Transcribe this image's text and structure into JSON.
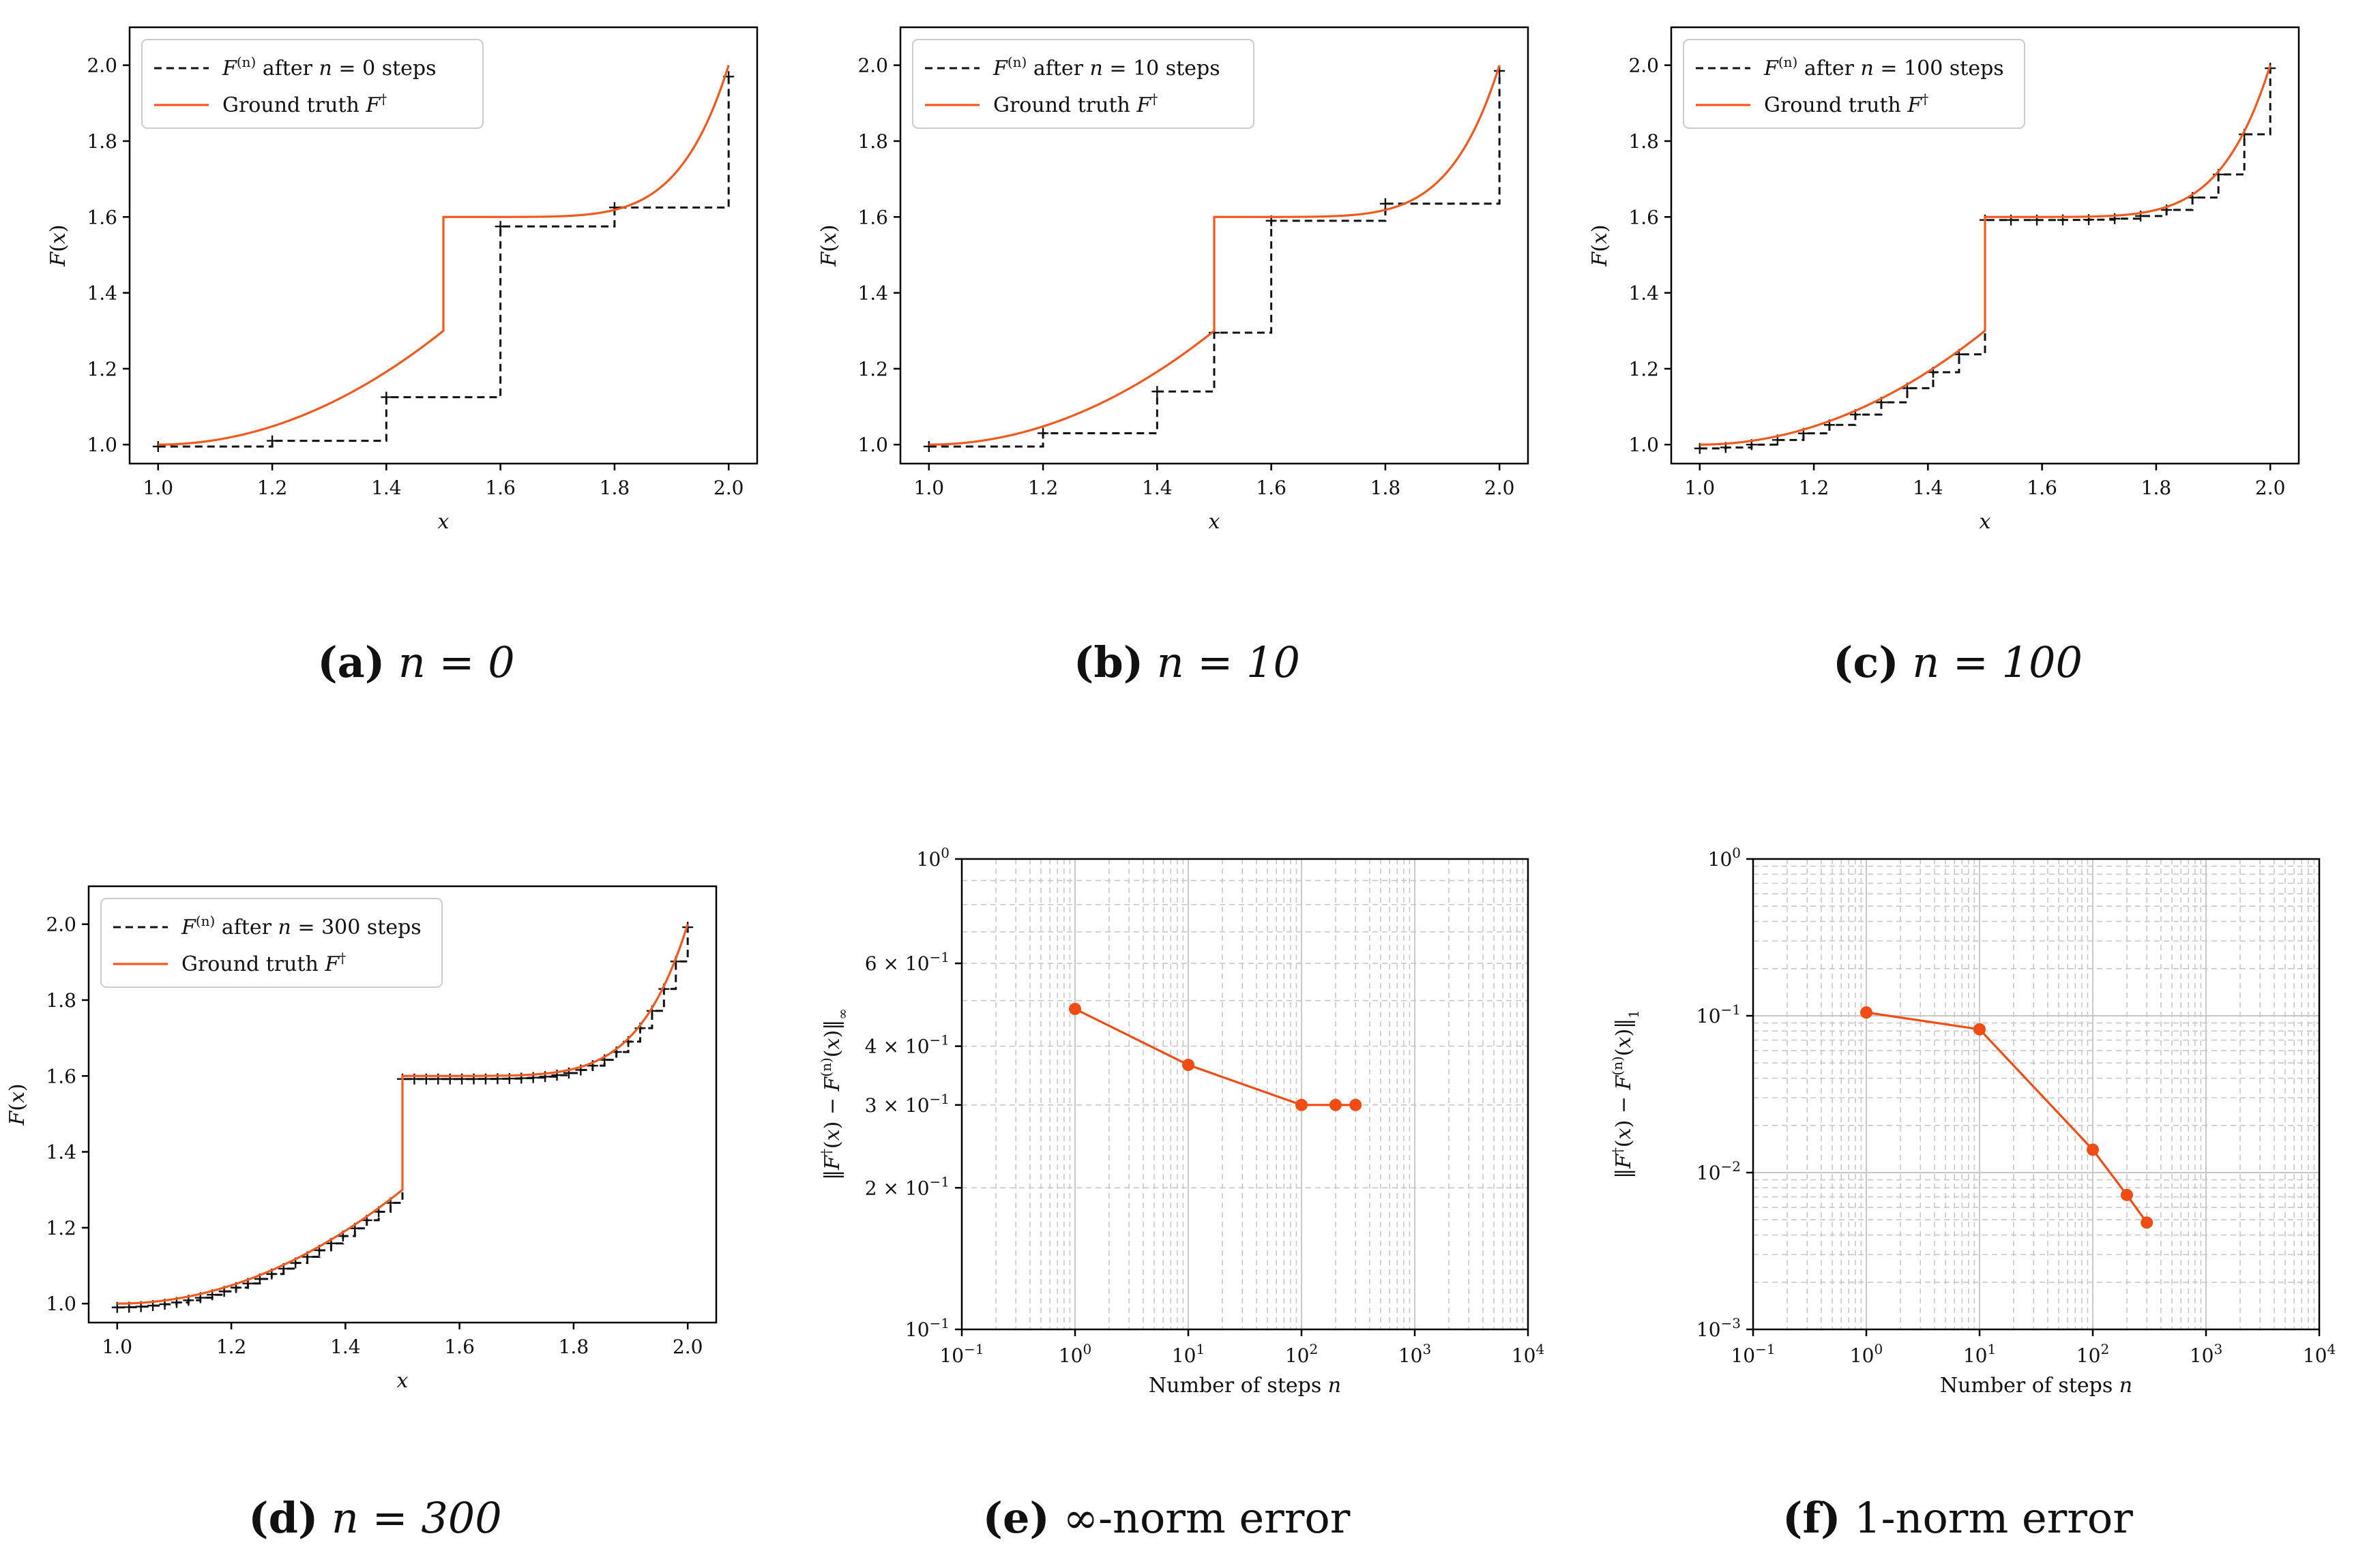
{
  "colors": {
    "truth": "#f05a1e",
    "approx": "#111111",
    "error": "#f04c14"
  },
  "captions": [
    {
      "letter": "(a)",
      "text": "n = 0"
    },
    {
      "letter": "(b)",
      "text": "n = 10"
    },
    {
      "letter": "(c)",
      "text": "n = 100"
    },
    {
      "letter": "(d)",
      "text": "n = 300"
    },
    {
      "letter": "(e)",
      "text": "∞-norm error"
    },
    {
      "letter": "(f)",
      "text": "1-norm error"
    }
  ],
  "chart_data": [
    {
      "type": "line",
      "id": "a",
      "xlabel": "x",
      "ylabel": "F(x)",
      "xlim": [
        0.95,
        2.05
      ],
      "ylim": [
        0.95,
        2.1
      ],
      "xticks": [
        "1.0",
        "1.2",
        "1.4",
        "1.6",
        "1.8",
        "2.0"
      ],
      "yticks": [
        "1.0",
        "1.2",
        "1.4",
        "1.6",
        "1.8",
        "2.0"
      ],
      "legend": [
        "F^(n) after n = 0 steps",
        "Ground truth F^†"
      ],
      "steps_n": 0,
      "approx_x": [
        1.0,
        1.2,
        1.4,
        1.6,
        1.8,
        2.0
      ],
      "approx_y": [
        0.995,
        1.01,
        1.125,
        1.575,
        1.625,
        1.97
      ]
    },
    {
      "type": "line",
      "id": "b",
      "xlabel": "x",
      "ylabel": "F(x)",
      "xlim": [
        0.95,
        2.05
      ],
      "ylim": [
        0.95,
        2.1
      ],
      "xticks": [
        "1.0",
        "1.2",
        "1.4",
        "1.6",
        "1.8",
        "2.0"
      ],
      "yticks": [
        "1.0",
        "1.2",
        "1.4",
        "1.6",
        "1.8",
        "2.0"
      ],
      "legend": [
        "F^(n) after n = 10 steps",
        "Ground truth F^†"
      ],
      "steps_n": 10,
      "approx_x": [
        1.0,
        1.2,
        1.4,
        1.5,
        1.6,
        1.8,
        2.0
      ],
      "approx_y": [
        0.995,
        1.03,
        1.14,
        1.295,
        1.59,
        1.635,
        1.985
      ]
    },
    {
      "type": "line",
      "id": "c",
      "xlabel": "x",
      "ylabel": "F(x)",
      "xlim": [
        0.95,
        2.05
      ],
      "ylim": [
        0.95,
        2.1
      ],
      "xticks": [
        "1.0",
        "1.2",
        "1.4",
        "1.6",
        "1.8",
        "2.0"
      ],
      "yticks": [
        "1.0",
        "1.2",
        "1.4",
        "1.6",
        "1.8",
        "2.0"
      ],
      "legend": [
        "F^(n) after n = 100 steps",
        "Ground truth F^†"
      ],
      "steps_n": 100,
      "approx_mode": "ground_truth_steps",
      "approx_knots": 22
    },
    {
      "type": "line",
      "id": "d",
      "xlabel": "x",
      "ylabel": "F(x)",
      "xlim": [
        0.95,
        2.05
      ],
      "ylim": [
        0.95,
        2.1
      ],
      "xticks": [
        "1.0",
        "1.2",
        "1.4",
        "1.6",
        "1.8",
        "2.0"
      ],
      "yticks": [
        "1.0",
        "1.2",
        "1.4",
        "1.6",
        "1.8",
        "2.0"
      ],
      "legend": [
        "F^(n) after n = 300 steps",
        "Ground truth F^†"
      ],
      "steps_n": 300,
      "approx_mode": "ground_truth_steps",
      "approx_knots": 48
    },
    {
      "type": "line",
      "id": "e",
      "scale": "log-log",
      "xlabel": "Number of steps n",
      "ylabel": "‖F^†(x) − F^(n)(x)‖_∞",
      "xlim": [
        0.1,
        10000
      ],
      "ylim": [
        0.1,
        1
      ],
      "xticks": [
        "10^-1",
        "10^0",
        "10^1",
        "10^2",
        "10^3",
        "10^4"
      ],
      "yticks": [
        "10^-1",
        "2 × 10^-1",
        "3 × 10^-1",
        "4 × 10^-1",
        "6 × 10^-1",
        "10^0"
      ],
      "x": [
        1,
        10,
        100,
        200,
        300
      ],
      "y": [
        0.48,
        0.365,
        0.3,
        0.3,
        0.3
      ]
    },
    {
      "type": "line",
      "id": "f",
      "scale": "log-log",
      "xlabel": "Number of steps n",
      "ylabel": "‖F^†(x) − F^(n)(x)‖_1",
      "xlim": [
        0.1,
        10000
      ],
      "ylim": [
        0.001,
        1
      ],
      "xticks": [
        "10^-1",
        "10^0",
        "10^1",
        "10^2",
        "10^3",
        "10^4"
      ],
      "yticks": [
        "10^-3",
        "10^-2",
        "10^-1",
        "10^0"
      ],
      "x": [
        1,
        10,
        100,
        200,
        300
      ],
      "y": [
        0.105,
        0.082,
        0.014,
        0.0072,
        0.0048
      ]
    }
  ]
}
